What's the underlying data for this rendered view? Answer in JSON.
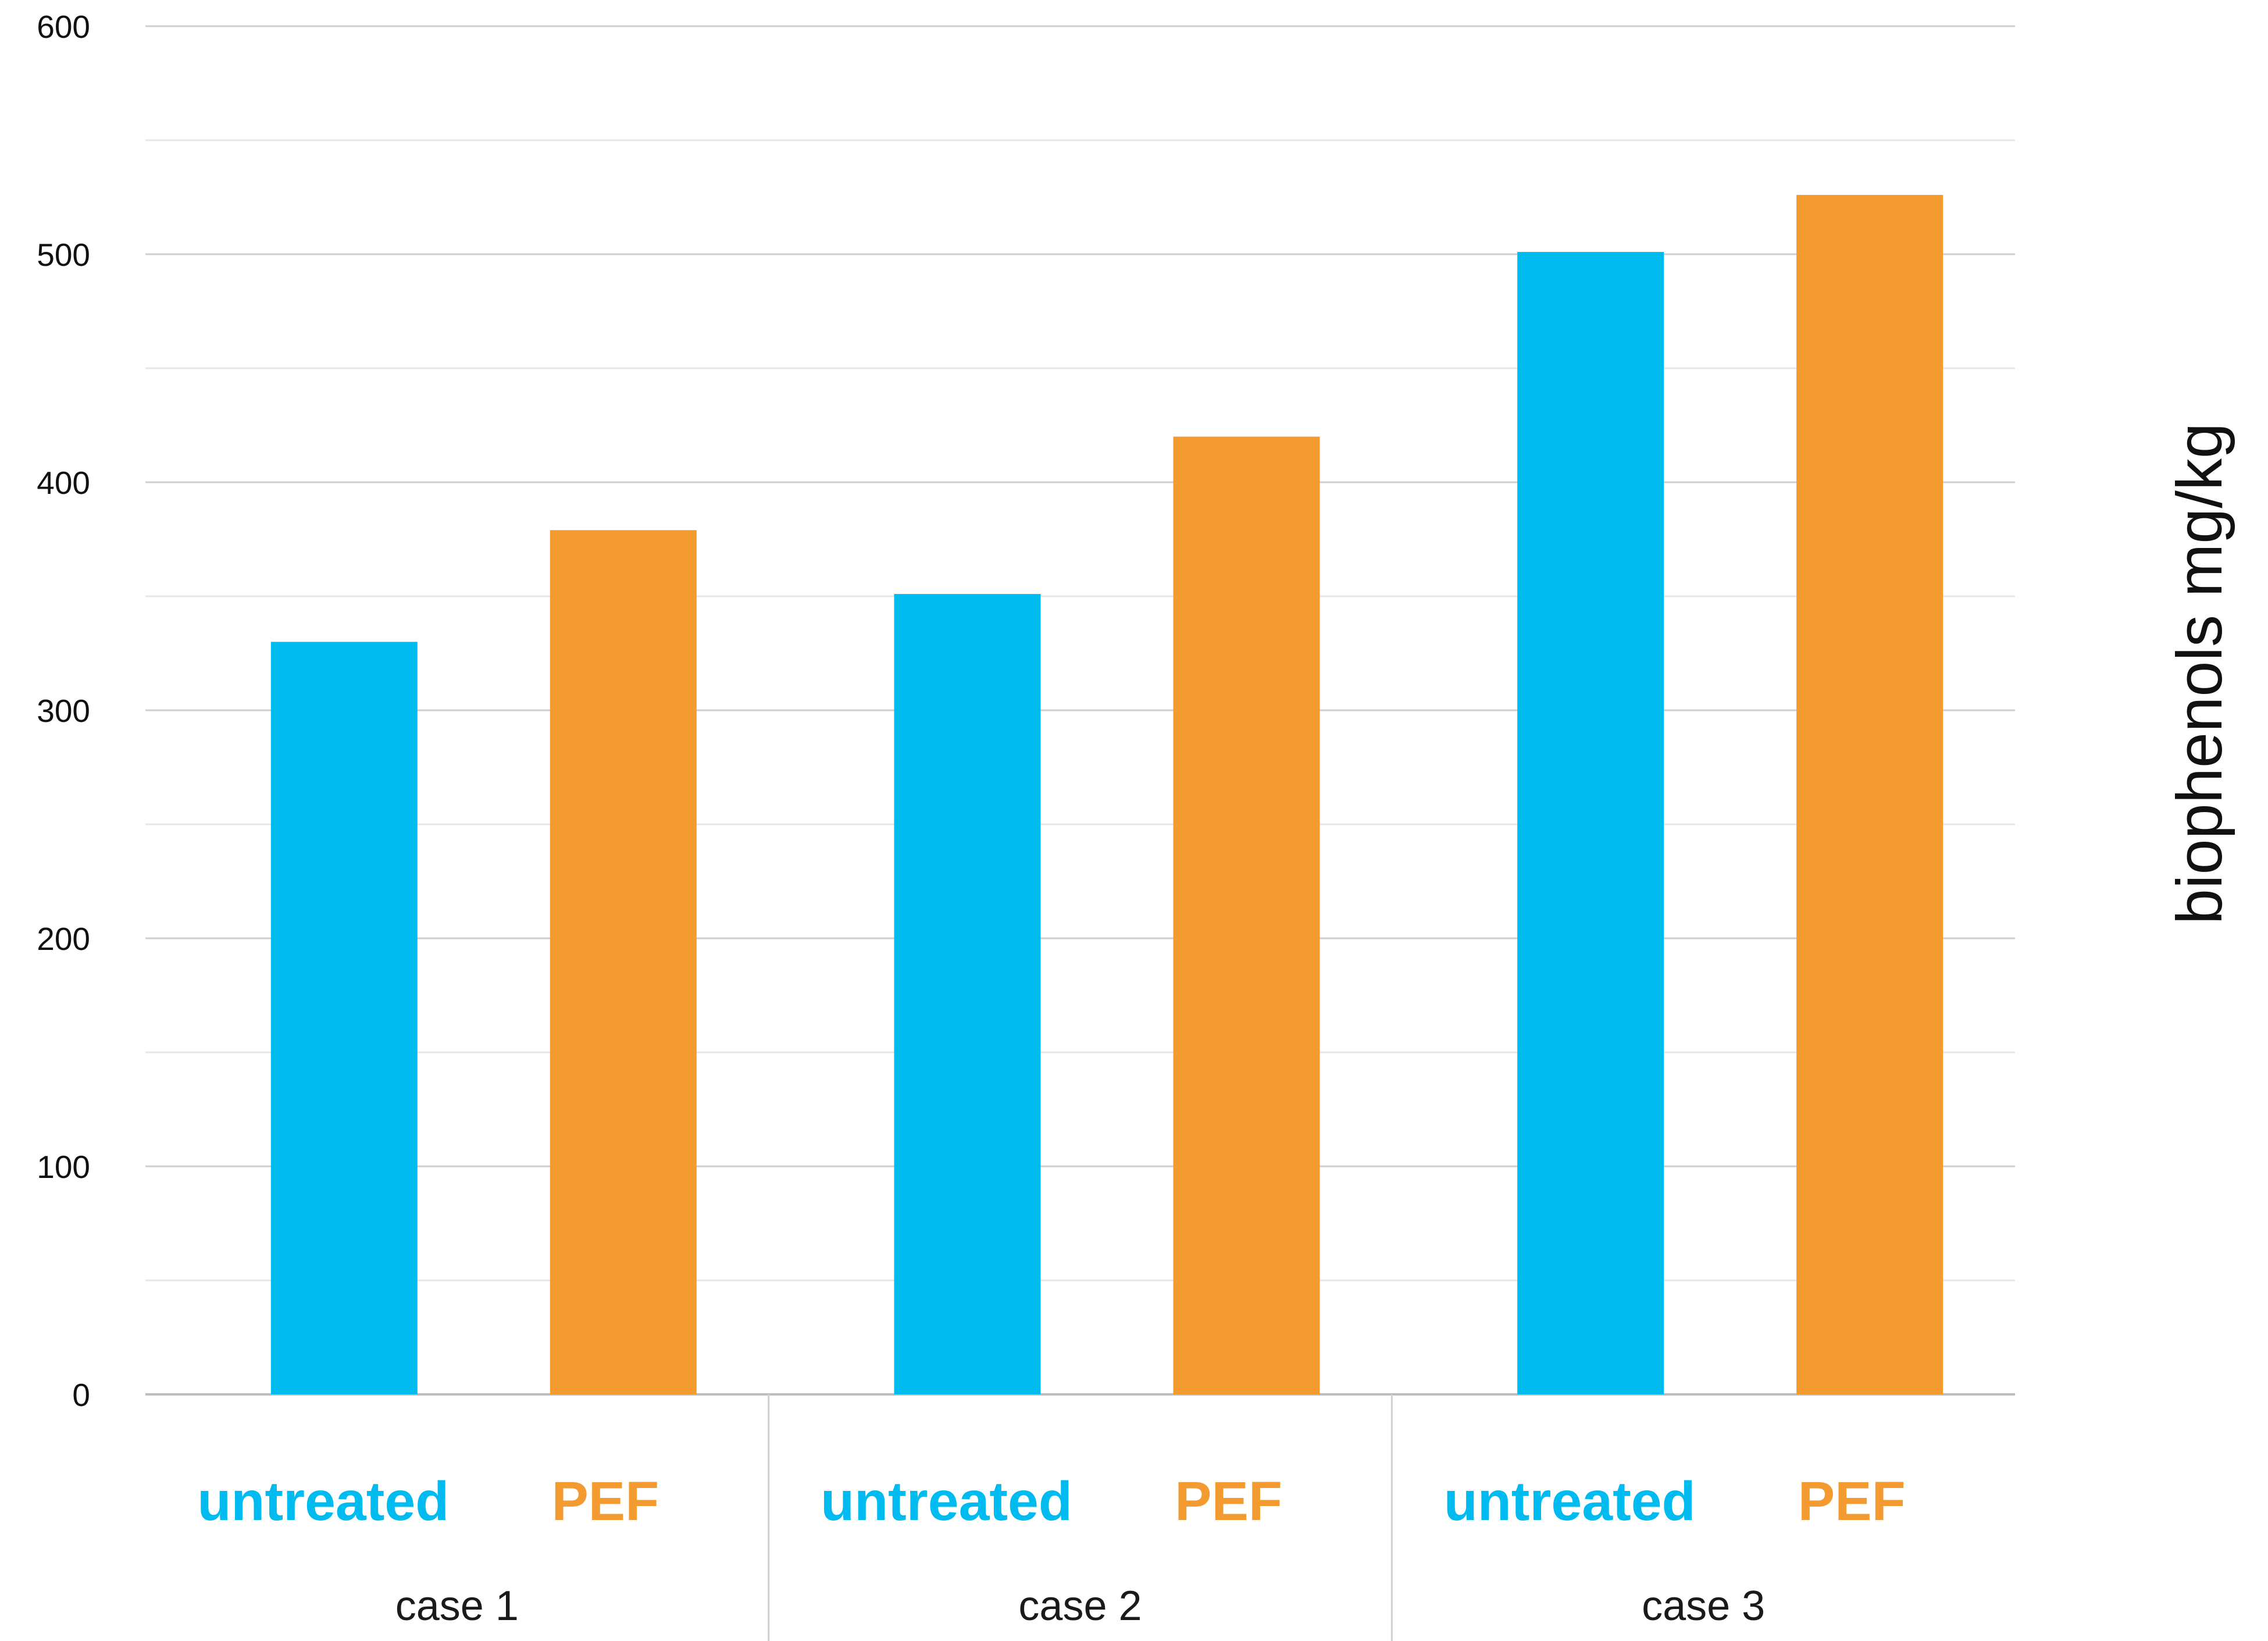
{
  "chart_data": {
    "type": "bar",
    "ylabel": "biophenols mg/kg",
    "ylim": [
      0,
      600
    ],
    "yticks": [
      "0",
      "100",
      "200",
      "300",
      "400",
      "500",
      "600"
    ],
    "grid": true,
    "groups": [
      {
        "label": "case 1",
        "bars": [
          {
            "label": "untreated",
            "value": 330,
            "color": "#00BBEF"
          },
          {
            "label": "PEF",
            "value": 379,
            "color": "#F39A30"
          }
        ]
      },
      {
        "label": "case 2",
        "bars": [
          {
            "label": "untreated",
            "value": 351,
            "color": "#00BBEF"
          },
          {
            "label": "PEF",
            "value": 420,
            "color": "#F39A30"
          }
        ]
      },
      {
        "label": "case 3",
        "bars": [
          {
            "label": "untreated",
            "value": 501,
            "color": "#00BBEF"
          },
          {
            "label": "PEF",
            "value": 526,
            "color": "#F39A30"
          }
        ]
      }
    ]
  }
}
